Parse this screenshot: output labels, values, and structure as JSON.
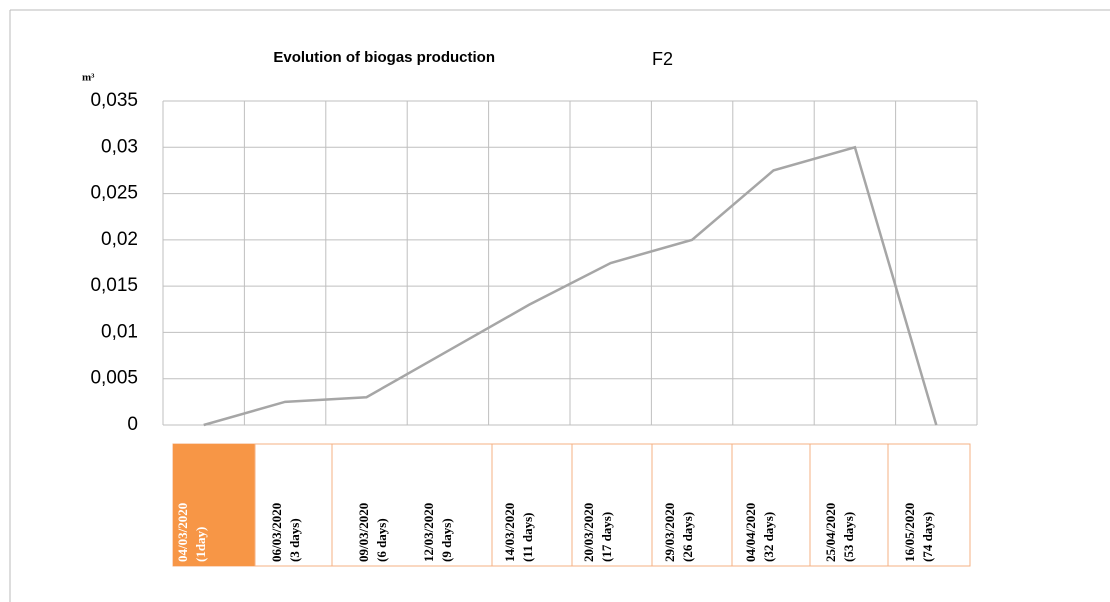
{
  "chart_data": {
    "type": "line",
    "title": "Evolution of biogas production",
    "series_label": "F2",
    "y_unit": "m³",
    "categories": [
      "04/03/2020",
      "06/03/2020",
      "09/03/2020",
      "12/03/2020",
      "14/03/2020",
      "20/03/2020",
      "29/03/2020",
      "04/04/2020",
      "25/04/2020",
      "16/05/2020"
    ],
    "durations": [
      "(1day)",
      "(3 days)",
      "(6 days)",
      "(9 days)",
      "(11 days)",
      "(17 days)",
      "(26 days)",
      "(32 days)",
      "(53 days)",
      "(74 days)"
    ],
    "values": [
      0,
      0.0025,
      0.003,
      0.008,
      0.013,
      0.0175,
      0.02,
      0.0275,
      0.03,
      0
    ],
    "color": "#a6a6a6",
    "ylim": [
      0,
      0.035
    ],
    "yticks": [
      0,
      {
        "value": 0.005,
        "label": "0,005"
      },
      {
        "value": 0.01,
        "label": "0,01"
      },
      {
        "value": 0.015,
        "label": "0,015"
      },
      {
        "value": 0.02,
        "label": "0,02"
      },
      {
        "value": 0.025,
        "label": "0,025"
      },
      {
        "value": 0.03,
        "label": "0,03"
      },
      {
        "value": 0.035,
        "label": "0,035"
      }
    ],
    "grid": true
  }
}
